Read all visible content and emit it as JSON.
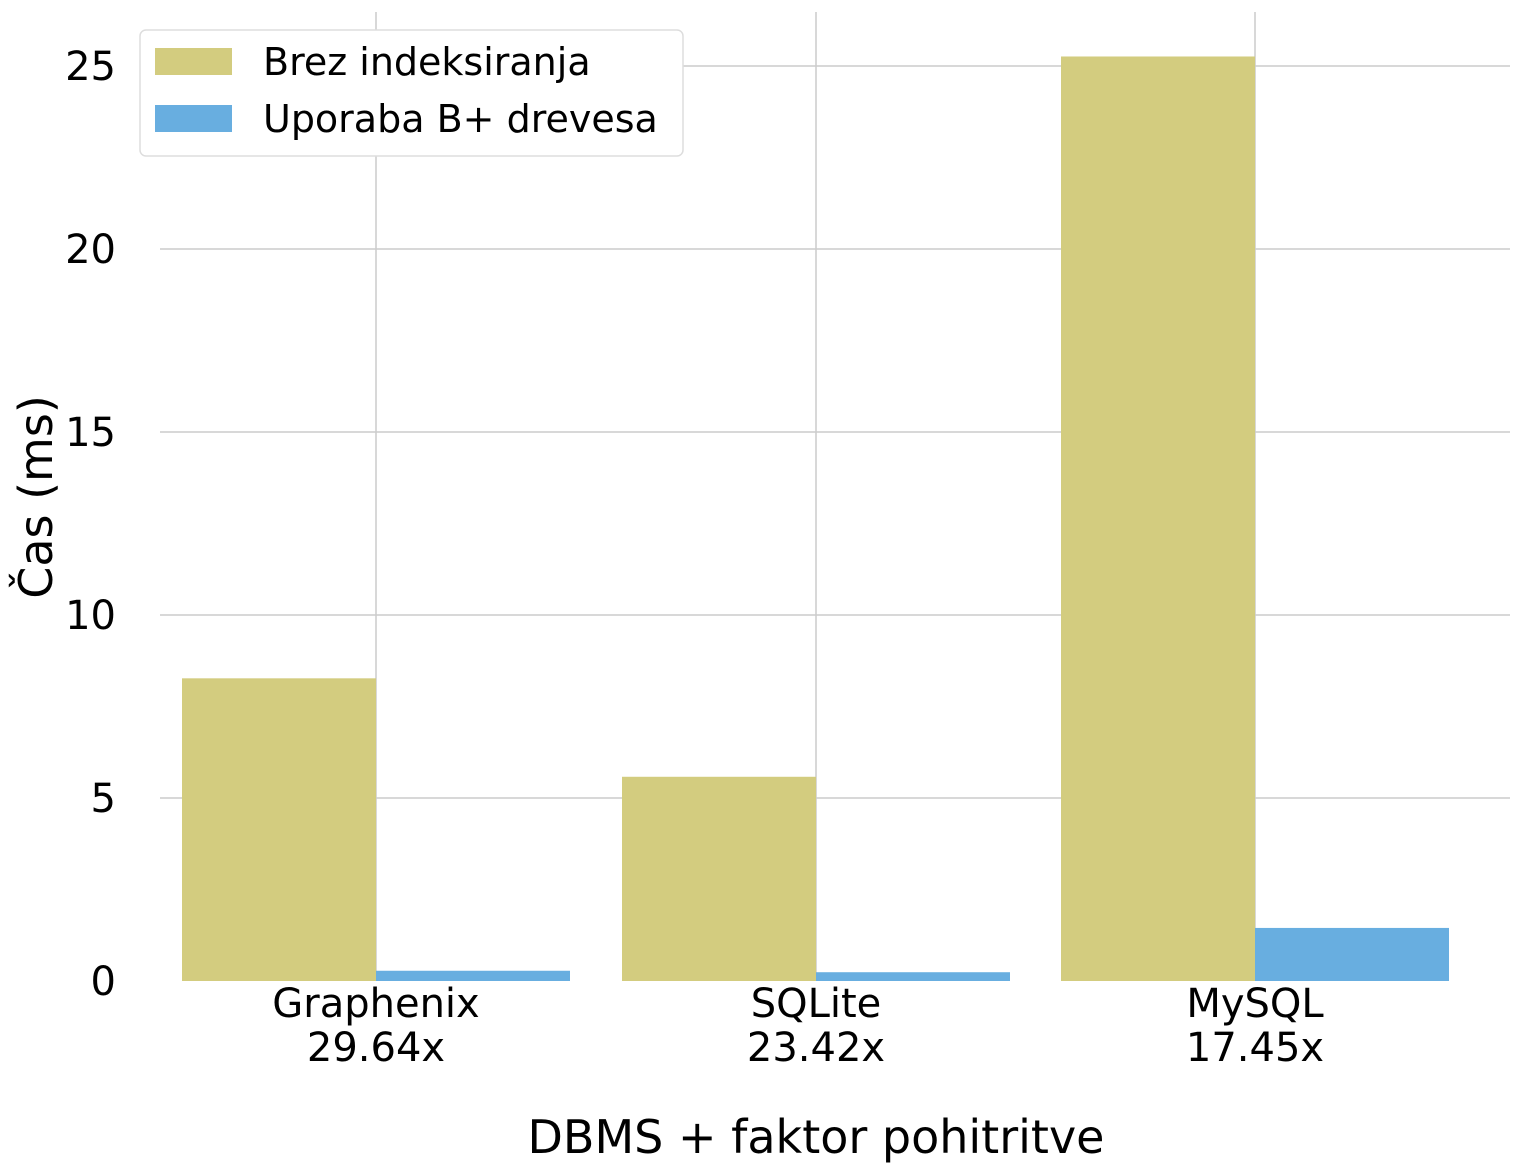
{
  "chart_data": {
    "type": "bar",
    "title": "",
    "xlabel": "DBMS + faktor pohitritve",
    "ylabel": "Čas (ms)",
    "categories": [
      "Graphenix",
      "SQLite",
      "MySQL"
    ],
    "category_sublabels": [
      "29.64x",
      "23.42x",
      "17.45x"
    ],
    "series": [
      {
        "name": "Brez indeksiranja",
        "values": [
          8.27,
          5.58,
          25.26
        ],
        "color": "#d3cc7f"
      },
      {
        "name": "Uporaba B+ drevesa",
        "values": [
          0.28,
          0.24,
          1.45
        ],
        "color": "#68aee0"
      }
    ],
    "y_ticks": [
      0,
      5,
      10,
      15,
      20,
      25
    ],
    "ylim": [
      0,
      26.5
    ],
    "grid": true,
    "legend_position": "top-left"
  }
}
